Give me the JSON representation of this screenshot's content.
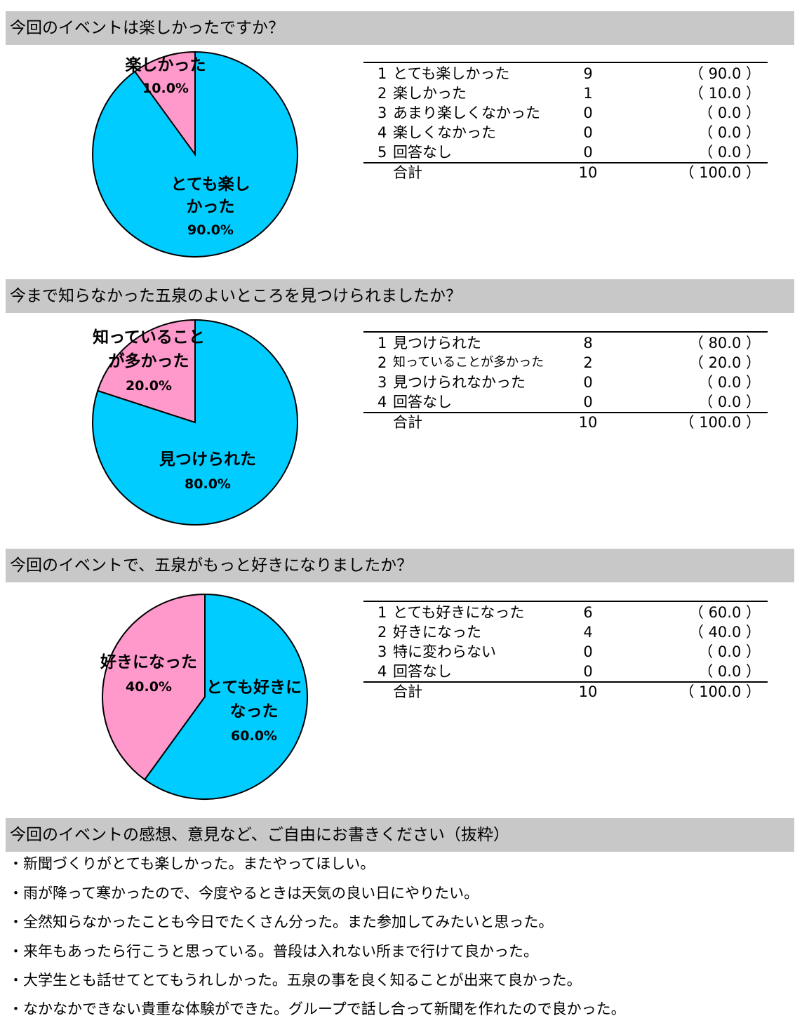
{
  "colors": {
    "header_bg": "#c8c8c8",
    "pie_blue": "#00ccff",
    "pie_pink": "#ff99cc"
  },
  "questions": [
    {
      "title": "今回のイベントは楽しかったですか？",
      "rows": [
        {
          "no": "1",
          "label": "とても楽しかった",
          "count": "9",
          "pct": "（ 90.0 ）"
        },
        {
          "no": "2",
          "label": "楽しかった",
          "count": "1",
          "pct": "（ 10.0 ）"
        },
        {
          "no": "3",
          "label": "あまり楽しくなかった",
          "count": "0",
          "pct": "（ 0.0 ）"
        },
        {
          "no": "4",
          "label": "楽しくなかった",
          "count": "0",
          "pct": "（ 0.0 ）"
        },
        {
          "no": "5",
          "label": "回答なし",
          "count": "0",
          "pct": "（ 0.0 ）"
        }
      ],
      "total": {
        "label": "合計",
        "count": "10",
        "pct": "（ 100.0 ）"
      },
      "pie_labels": [
        {
          "lines": [
            "とても楽し",
            "かった",
            "90.0%"
          ]
        },
        {
          "lines": [
            "楽しかった",
            "10.0%"
          ]
        }
      ]
    },
    {
      "title": "今まで知らなかった五泉のよいところを見つけられましたか？",
      "rows": [
        {
          "no": "1",
          "label": "見つけられた",
          "count": "8",
          "pct": "（ 80.0 ）"
        },
        {
          "no": "2",
          "label": "知っていることが多かった",
          "count": "2",
          "pct": "（ 20.0 ）"
        },
        {
          "no": "3",
          "label": "見つけられなかった",
          "count": "0",
          "pct": "（ 0.0 ）"
        },
        {
          "no": "4",
          "label": "回答なし",
          "count": "0",
          "pct": "（ 0.0 ）"
        }
      ],
      "total": {
        "label": "合計",
        "count": "10",
        "pct": "（ 100.0 ）"
      },
      "pie_labels": [
        {
          "lines": [
            "見つけられた",
            "80.0%"
          ]
        },
        {
          "lines": [
            "知っていること",
            "が多かった",
            "20.0%"
          ]
        }
      ]
    },
    {
      "title": "今回のイベントで、五泉がもっと好きになりましたか？",
      "rows": [
        {
          "no": "1",
          "label": "とても好きになった",
          "count": "6",
          "pct": "（ 60.0 ）"
        },
        {
          "no": "2",
          "label": "好きになった",
          "count": "4",
          "pct": "（ 40.0 ）"
        },
        {
          "no": "3",
          "label": "特に変わらない",
          "count": "0",
          "pct": "（ 0.0 ）"
        },
        {
          "no": "4",
          "label": "回答なし",
          "count": "0",
          "pct": "（ 0.0 ）"
        }
      ],
      "total": {
        "label": "合計",
        "count": "10",
        "pct": "（ 100.0 ）"
      },
      "pie_labels": [
        {
          "lines": [
            "とても好きに",
            "なった",
            "60.0%"
          ]
        },
        {
          "lines": [
            "好きになった",
            "40.0%"
          ]
        }
      ]
    }
  ],
  "comments": {
    "title": "今回のイベントの感想、意見など、ご自由にお書きください（抜粋）",
    "items": [
      "・新聞づくりがとても楽しかった。またやってほしい。",
      "・雨が降って寒かったので、今度やるときは天気の良い日にやりたい。",
      "・全然知らなかったことも今日でたくさん分った。また参加してみたいと思った。",
      "・来年もあったら行こうと思っている。普段は入れない所まで行けて良かった。",
      "・大学生とも話せてとてもうれしかった。五泉の事を良く知ることが出来て良かった。",
      "・なかなかできない貴重な体験ができた。グループで話し合って新聞を作れたので良かった。"
    ]
  },
  "chart_data": [
    {
      "type": "pie",
      "title": "今回のイベントは楽しかったですか？",
      "categories": [
        "とても楽しかった",
        "楽しかった"
      ],
      "values": [
        90.0,
        10.0
      ]
    },
    {
      "type": "pie",
      "title": "今まで知らなかった五泉のよいところを見つけられましたか？",
      "categories": [
        "見つけられた",
        "知っていることが多かった"
      ],
      "values": [
        80.0,
        20.0
      ]
    },
    {
      "type": "pie",
      "title": "今回のイベントで、五泉がもっと好きになりましたか？",
      "categories": [
        "とても好きになった",
        "好きになった"
      ],
      "values": [
        60.0,
        40.0
      ]
    }
  ]
}
